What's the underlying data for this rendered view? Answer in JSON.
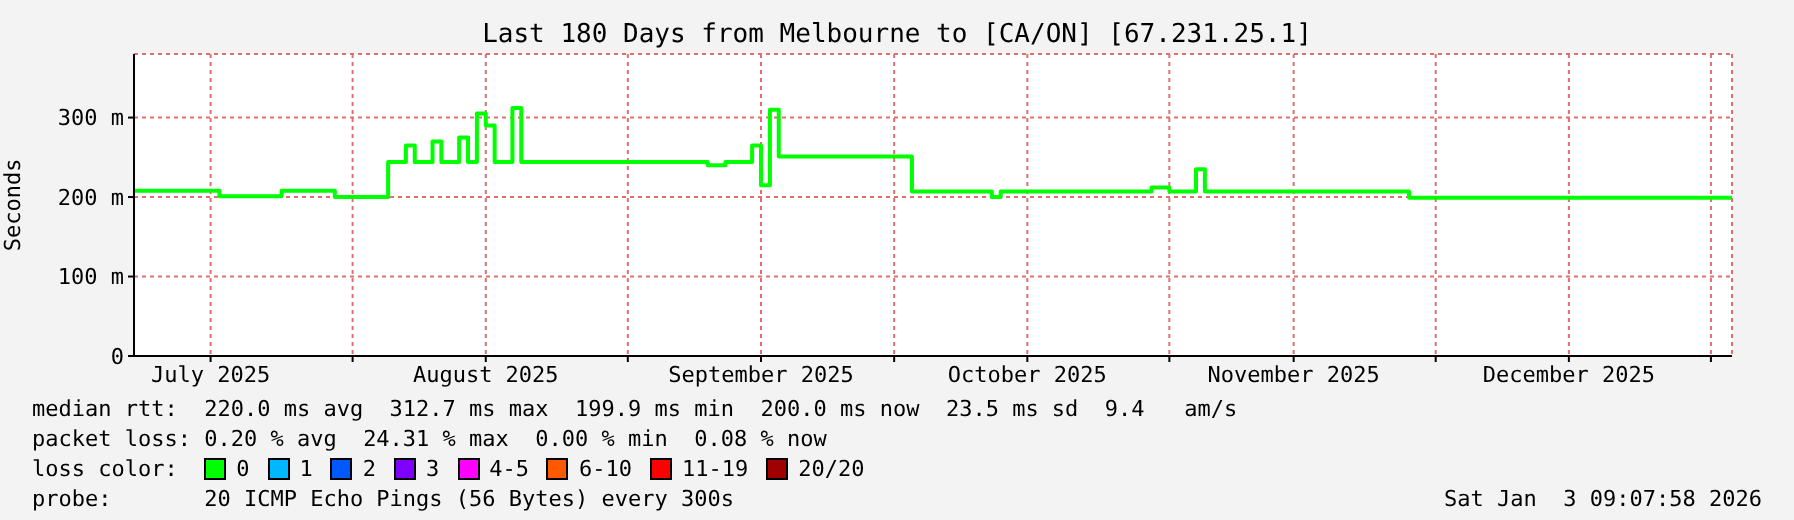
{
  "chart_data": {
    "type": "step",
    "title": "Last 180 Days from Melbourne to [CA/ON] [67.231.25.1]",
    "ylabel": "Seconds",
    "legend_title": "loss color:",
    "x": [
      "2025-07-07T09:00",
      "2025-07-17",
      "2025-07-24",
      "2025-07-30",
      "2025-08-05",
      "2025-08-07",
      "2025-08-08",
      "2025-08-10",
      "2025-08-11",
      "2025-08-13",
      "2025-08-14",
      "2025-08-15",
      "2025-08-16",
      "2025-08-17",
      "2025-08-19",
      "2025-08-20",
      "2025-09-10",
      "2025-09-12",
      "2025-09-15",
      "2025-09-16",
      "2025-09-17",
      "2025-09-18",
      "2025-10-03",
      "2025-10-12",
      "2025-10-13",
      "2025-10-30",
      "2025-11-01",
      "2025-11-04",
      "2025-11-05",
      "2025-11-28",
      "2026-01-03T09:00"
    ],
    "series": [
      {
        "name": "0",
        "color": "#00ff00",
        "values": [
          208,
          201,
          208,
          200,
          244,
          265,
          244,
          270,
          244,
          275,
          244,
          305,
          290,
          244,
          312,
          244,
          240,
          244,
          265,
          215,
          310,
          251,
          207,
          200,
          207,
          212,
          207,
          235,
          207,
          199,
          199
        ]
      },
      {
        "name": "1",
        "color": "#00b8ff",
        "values": [
          null,
          null,
          null,
          null,
          null,
          null,
          null,
          null,
          null,
          null,
          null,
          null,
          null,
          null,
          null,
          null,
          null,
          null,
          null,
          null,
          null,
          null,
          null,
          null,
          null,
          null,
          null,
          null,
          null,
          null,
          null
        ]
      },
      {
        "name": "2",
        "color": "#0059ff",
        "values": [
          null,
          null,
          null,
          null,
          null,
          null,
          null,
          null,
          null,
          null,
          null,
          null,
          null,
          null,
          null,
          null,
          null,
          null,
          null,
          null,
          null,
          null,
          null,
          null,
          null,
          null,
          null,
          null,
          null,
          null,
          null
        ]
      },
      {
        "name": "3",
        "color": "#7e00ff",
        "values": [
          null,
          null,
          null,
          null,
          null,
          null,
          null,
          null,
          null,
          null,
          null,
          null,
          null,
          null,
          null,
          null,
          null,
          null,
          null,
          null,
          null,
          null,
          null,
          null,
          null,
          null,
          null,
          null,
          null,
          null,
          null
        ]
      },
      {
        "name": "4-5",
        "color": "#ff00ff",
        "values": [
          null,
          null,
          null,
          null,
          null,
          null,
          null,
          null,
          null,
          null,
          null,
          null,
          null,
          null,
          null,
          null,
          null,
          null,
          null,
          null,
          null,
          null,
          null,
          null,
          null,
          null,
          null,
          null,
          null,
          null,
          null
        ]
      },
      {
        "name": "6-10",
        "color": "#ff5900",
        "values": [
          null,
          null,
          null,
          null,
          null,
          null,
          null,
          null,
          null,
          null,
          null,
          null,
          null,
          null,
          null,
          null,
          null,
          null,
          null,
          null,
          null,
          null,
          null,
          null,
          null,
          null,
          null,
          null,
          null,
          null,
          null
        ]
      },
      {
        "name": "11-19",
        "color": "#ff0000",
        "values": [
          null,
          null,
          null,
          null,
          null,
          null,
          null,
          null,
          null,
          null,
          null,
          null,
          null,
          null,
          null,
          null,
          null,
          null,
          null,
          null,
          null,
          null,
          null,
          null,
          null,
          null,
          null,
          null,
          null,
          null,
          null
        ]
      },
      {
        "name": "20/20",
        "color": "#a10000",
        "values": [
          null,
          null,
          null,
          null,
          null,
          null,
          null,
          null,
          null,
          null,
          null,
          null,
          null,
          null,
          null,
          null,
          null,
          null,
          null,
          null,
          null,
          null,
          null,
          null,
          null,
          null,
          null,
          null,
          null,
          null,
          null
        ]
      }
    ],
    "xlim": [
      "2025-07-07T09:00",
      "2026-01-03T09:00"
    ],
    "xticks": [
      {
        "value": "2025-07-16",
        "label": "July 2025"
      },
      {
        "value": "2025-08-01",
        "label": null
      },
      {
        "value": "2025-08-16",
        "label": "August 2025"
      },
      {
        "value": "2025-09-01",
        "label": null
      },
      {
        "value": "2025-09-16",
        "label": "September 2025"
      },
      {
        "value": "2025-10-01",
        "label": null
      },
      {
        "value": "2025-10-16",
        "label": "October 2025"
      },
      {
        "value": "2025-11-01",
        "label": null
      },
      {
        "value": "2025-11-15",
        "label": "November 2025"
      },
      {
        "value": "2025-12-01",
        "label": null
      },
      {
        "value": "2025-12-16",
        "label": "December 2025"
      },
      {
        "value": "2026-01-01",
        "label": null
      }
    ],
    "ylim": [
      0,
      380
    ],
    "yticks": [
      {
        "value": 0,
        "label": "0"
      },
      {
        "value": 100,
        "label": "100 m"
      },
      {
        "value": 200,
        "label": "200 m"
      },
      {
        "value": 300,
        "label": "300 m"
      }
    ],
    "grid": true,
    "legend": "bottom",
    "marker": "none",
    "line_style": "solid",
    "annotations": [
      "median rtt:  220.0 ms avg  312.7 ms max  199.9 ms min  200.0 ms now  23.5 ms sd  9.4   am/s",
      "packet loss: 0.20 % avg  24.31 % max  0.00 % min  0.08 % now",
      "probe:       20 ICMP Echo Pings (56 Bytes) every 300s",
      "Sat Jan  3 09:07:58 2026"
    ]
  }
}
